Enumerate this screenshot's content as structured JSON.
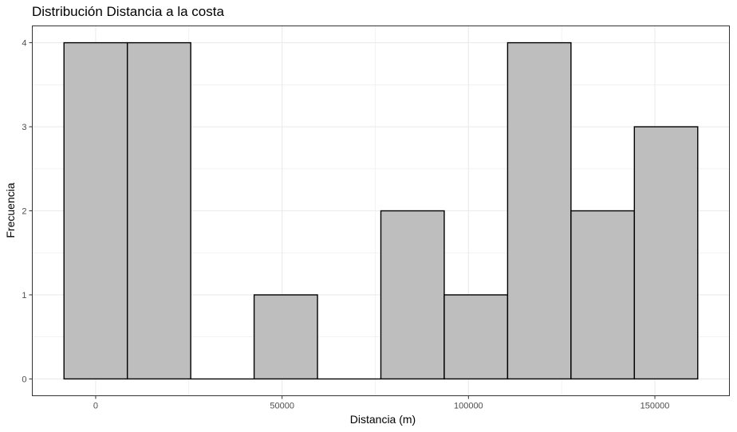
{
  "chart_data": {
    "type": "bar",
    "title": "Distribución Distancia a la costa",
    "xlabel": "Distancia (m)",
    "ylabel": "Frecuencia",
    "bins": [
      {
        "x0": -8500,
        "x1": 8500,
        "value": 4
      },
      {
        "x0": 8500,
        "x1": 25500,
        "value": 4
      },
      {
        "x0": 25500,
        "x1": 42500,
        "value": 0
      },
      {
        "x0": 42500,
        "x1": 59500,
        "value": 1
      },
      {
        "x0": 59500,
        "x1": 76500,
        "value": 0
      },
      {
        "x0": 76500,
        "x1": 93500,
        "value": 2
      },
      {
        "x0": 93500,
        "x1": 110500,
        "value": 1
      },
      {
        "x0": 110500,
        "x1": 127500,
        "value": 4
      },
      {
        "x0": 127500,
        "x1": 144500,
        "value": 2
      },
      {
        "x0": 144500,
        "x1": 161500,
        "value": 3
      }
    ],
    "xticks": [
      0,
      50000,
      100000,
      150000
    ],
    "yticks": [
      0,
      1,
      2,
      3,
      4
    ],
    "xlim": [
      -17000,
      170000
    ],
    "ylim": [
      -0.2,
      4.2
    ],
    "grid": true,
    "bar_fill": "#bebebe",
    "bar_stroke": "#000000",
    "panel_border": "#333333",
    "grid_color": "#ebebeb"
  }
}
